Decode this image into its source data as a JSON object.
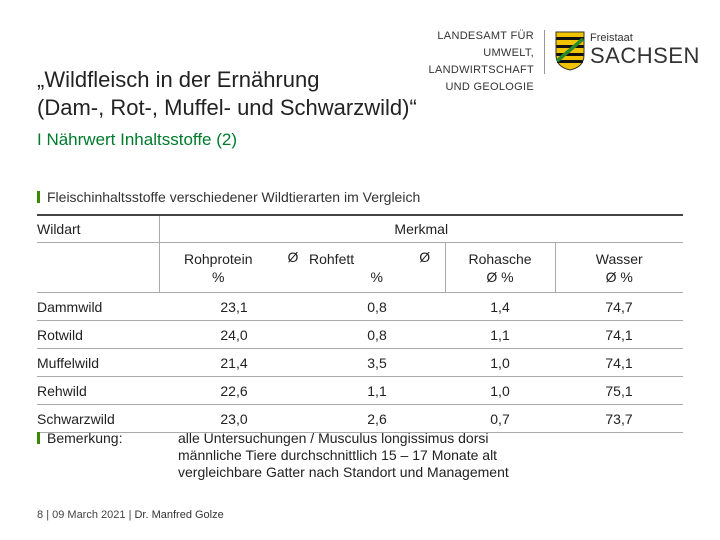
{
  "header": {
    "lfulg_lines": [
      "LANDESAMT FÜR UMWELT,",
      "LANDWIRTSCHAFT",
      "UND GEOLOGIE"
    ],
    "freistaat": "Freistaat",
    "sachsen": "SACHSEN"
  },
  "title_line1": "„Wildfleisch in der Ernährung",
  "title_line2": "(Dam-, Rot-, Muffel- und Schwarzwild)“",
  "subtitle": "I Nährwert Inhaltsstoffe (2)",
  "section": "Fleischinhaltsstoffe verschiedener Wildtierarten im Vergleich",
  "table": {
    "col_wildart": "Wildart",
    "col_merkmal": "Merkmal",
    "sub_headers": [
      {
        "line1": "Rohprotein",
        "line2": "%",
        "suffix": "Ø"
      },
      {
        "line1": "Rohfett",
        "line2": "%",
        "suffix": "Ø"
      },
      {
        "line1": "Rohasche",
        "line2": "Ø %"
      },
      {
        "line1": "Wasser",
        "line2": "Ø %"
      }
    ],
    "rows": [
      {
        "name": "Dammwild",
        "values": [
          "23,1",
          "0,8",
          "1,4",
          "74,7"
        ]
      },
      {
        "name": "Rotwild",
        "values": [
          "24,0",
          "0,8",
          "1,1",
          "74,1"
        ]
      },
      {
        "name": "Muffelwild",
        "values": [
          "21,4",
          "3,5",
          "1,0",
          "74,1"
        ]
      },
      {
        "name": "Rehwild",
        "values": [
          "22,6",
          "1,1",
          "1,0",
          "75,1"
        ]
      },
      {
        "name": "Schwarzwild",
        "values": [
          "23,0",
          "2,6",
          "0,7",
          "73,7"
        ]
      }
    ]
  },
  "note_label": "Bemerkung:",
  "note_lines": [
    "alle Untersuchungen / Musculus longissimus dorsi",
    "männliche Tiere durchschnittlich 15 – 17 Monate alt",
    "vergleichbare Gatter nach Standort und Management"
  ],
  "footer": {
    "page": "8",
    "date": "09 March 2021",
    "author": "Dr. Manfred Golze"
  },
  "colors": {
    "subtitle_green": "#007a2c",
    "bullet_green": "#3a8a00"
  }
}
